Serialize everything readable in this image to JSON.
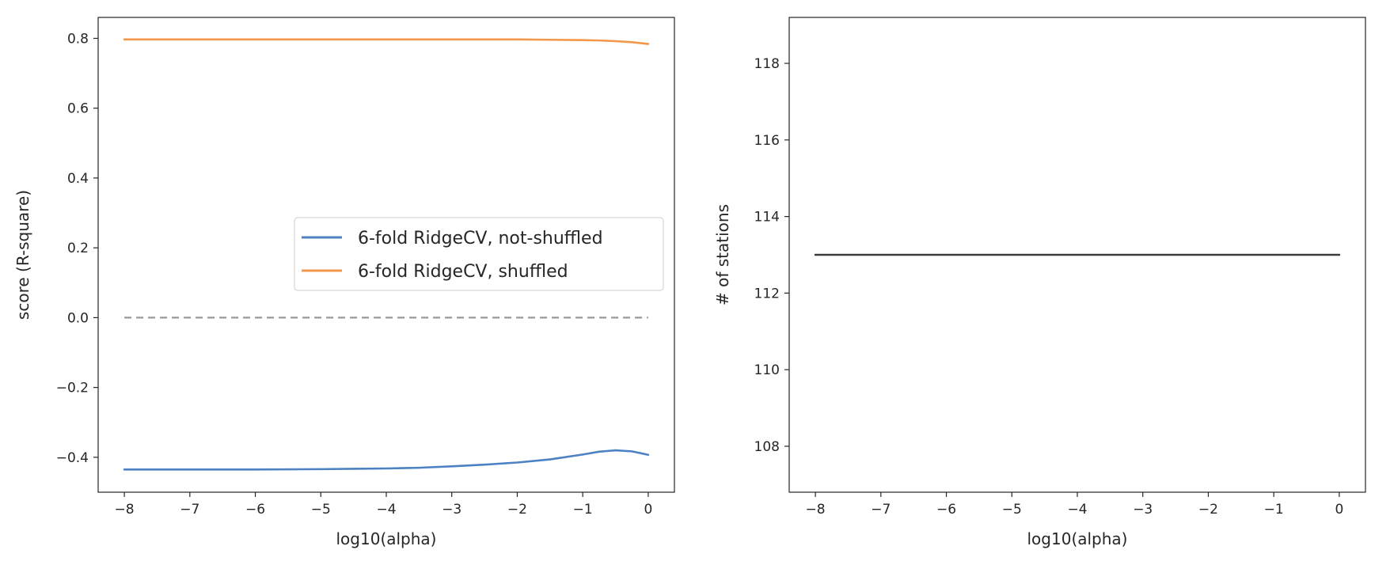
{
  "chart_data": [
    {
      "type": "line",
      "xlabel": "log10(alpha)",
      "ylabel": "score (R-square)",
      "xlim": [
        -8.4,
        0.4
      ],
      "ylim": [
        -0.5,
        0.86
      ],
      "xticks": [
        -8,
        -7,
        -6,
        -5,
        -4,
        -3,
        -2,
        -1,
        0
      ],
      "xtick_labels": [
        "−8",
        "−7",
        "−6",
        "−5",
        "−4",
        "−3",
        "−2",
        "−1",
        "0"
      ],
      "yticks": [
        -0.4,
        -0.2,
        0.0,
        0.2,
        0.4,
        0.6,
        0.8
      ],
      "ytick_labels": [
        "−0.4",
        "−0.2",
        "0.0",
        "0.2",
        "0.4",
        "0.6",
        "0.8"
      ],
      "grid": false,
      "legend_position": "center-right",
      "x": [
        -8,
        -7,
        -6,
        -5,
        -4.5,
        -4,
        -3.5,
        -3,
        -2.5,
        -2,
        -1.5,
        -1,
        -0.75,
        -0.5,
        -0.25,
        0
      ],
      "series": [
        {
          "name": "6-fold RidgeCV, not-shuffled",
          "color": "#4c82c3",
          "values": [
            -0.435,
            -0.435,
            -0.435,
            -0.434,
            -0.433,
            -0.432,
            -0.43,
            -0.426,
            -0.421,
            -0.415,
            -0.406,
            -0.392,
            -0.384,
            -0.38,
            -0.383,
            -0.393
          ]
        },
        {
          "name": "6-fold RidgeCV, shuffled",
          "color": "#f5974a",
          "values": [
            0.797,
            0.797,
            0.797,
            0.797,
            0.797,
            0.797,
            0.797,
            0.797,
            0.797,
            0.797,
            0.796,
            0.795,
            0.794,
            0.792,
            0.789,
            0.784
          ]
        }
      ],
      "reference_line": {
        "y": 0.0,
        "style": "dashed",
        "color": "#999999",
        "x_range": [
          -8,
          0
        ]
      }
    },
    {
      "type": "line",
      "xlabel": "log10(alpha)",
      "ylabel": "# of stations",
      "xlim": [
        -8.4,
        0.4
      ],
      "ylim": [
        106.8,
        119.2
      ],
      "xticks": [
        -8,
        -7,
        -6,
        -5,
        -4,
        -3,
        -2,
        -1,
        0
      ],
      "xtick_labels": [
        "−8",
        "−7",
        "−6",
        "−5",
        "−4",
        "−3",
        "−2",
        "−1",
        "0"
      ],
      "yticks": [
        108,
        110,
        112,
        114,
        116,
        118
      ],
      "ytick_labels": [
        "108",
        "110",
        "112",
        "114",
        "116",
        "118"
      ],
      "grid": false,
      "x": [
        -8,
        0
      ],
      "series": [
        {
          "color": "#3a3a3a",
          "values": [
            113,
            113
          ]
        }
      ]
    }
  ]
}
